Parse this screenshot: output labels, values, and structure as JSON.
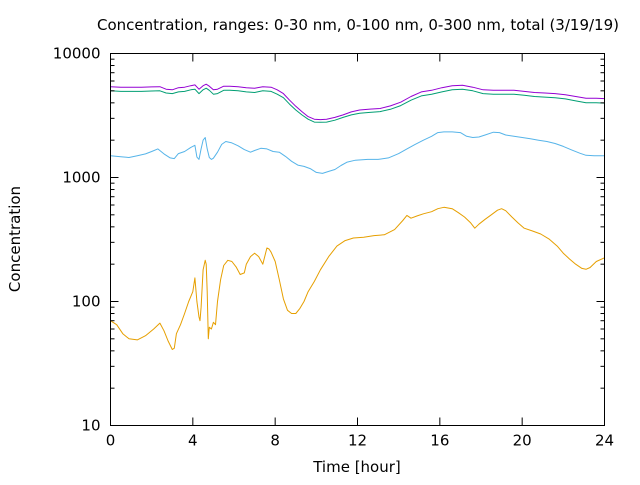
{
  "chart_data": {
    "type": "line",
    "title": "Concentration, ranges: 0-30 nm, 0-100 nm, 0-300 nm, total (3/19/19)",
    "xlabel": "Time [hour]",
    "ylabel": "Concentration",
    "xlim": [
      0,
      24
    ],
    "ylim": [
      10,
      10000
    ],
    "yscale": "log",
    "grid": false,
    "legend": "none",
    "x_ticks": [
      0,
      4,
      8,
      12,
      16,
      20,
      24
    ],
    "x_tick_labels": [
      "0",
      "4",
      "8",
      "12",
      "16",
      "20",
      "24"
    ],
    "y_ticks": [
      10,
      100,
      1000,
      10000
    ],
    "y_tick_labels": [
      "10",
      "100",
      "1000",
      "10000"
    ],
    "series": [
      {
        "color": "#e69f00",
        "points": [
          [
            0,
            70
          ],
          [
            0.3,
            65
          ],
          [
            0.6,
            55
          ],
          [
            0.9,
            50
          ],
          [
            1.3,
            49
          ],
          [
            1.7,
            53
          ],
          [
            2.1,
            60
          ],
          [
            2.4,
            67
          ],
          [
            2.6,
            58
          ],
          [
            2.8,
            48
          ],
          [
            3.0,
            41
          ],
          [
            3.1,
            42
          ],
          [
            3.2,
            55
          ],
          [
            3.4,
            65
          ],
          [
            3.6,
            80
          ],
          [
            3.8,
            100
          ],
          [
            4.0,
            120
          ],
          [
            4.1,
            155
          ],
          [
            4.2,
            100
          ],
          [
            4.3,
            75
          ],
          [
            4.35,
            70
          ],
          [
            4.4,
            90
          ],
          [
            4.5,
            180
          ],
          [
            4.6,
            215
          ],
          [
            4.65,
            200
          ],
          [
            4.7,
            120
          ],
          [
            4.75,
            50
          ],
          [
            4.8,
            62
          ],
          [
            4.9,
            60
          ],
          [
            5.0,
            68
          ],
          [
            5.1,
            65
          ],
          [
            5.2,
            100
          ],
          [
            5.35,
            150
          ],
          [
            5.5,
            195
          ],
          [
            5.7,
            215
          ],
          [
            5.9,
            210
          ],
          [
            6.1,
            190
          ],
          [
            6.3,
            165
          ],
          [
            6.5,
            170
          ],
          [
            6.6,
            200
          ],
          [
            6.8,
            230
          ],
          [
            7.0,
            245
          ],
          [
            7.2,
            230
          ],
          [
            7.4,
            200
          ],
          [
            7.6,
            270
          ],
          [
            7.7,
            265
          ],
          [
            7.8,
            250
          ],
          [
            8.0,
            210
          ],
          [
            8.2,
            150
          ],
          [
            8.4,
            105
          ],
          [
            8.6,
            85
          ],
          [
            8.8,
            80
          ],
          [
            9.0,
            80
          ],
          [
            9.2,
            88
          ],
          [
            9.4,
            100
          ],
          [
            9.6,
            120
          ],
          [
            9.9,
            145
          ],
          [
            10.2,
            180
          ],
          [
            10.6,
            230
          ],
          [
            11.0,
            280
          ],
          [
            11.4,
            310
          ],
          [
            11.8,
            325
          ],
          [
            12.3,
            330
          ],
          [
            12.8,
            340
          ],
          [
            13.3,
            345
          ],
          [
            13.8,
            380
          ],
          [
            14.2,
            450
          ],
          [
            14.4,
            495
          ],
          [
            14.6,
            470
          ],
          [
            14.9,
            490
          ],
          [
            15.2,
            510
          ],
          [
            15.6,
            530
          ],
          [
            15.9,
            560
          ],
          [
            16.2,
            575
          ],
          [
            16.6,
            560
          ],
          [
            16.9,
            520
          ],
          [
            17.2,
            480
          ],
          [
            17.5,
            430
          ],
          [
            17.7,
            390
          ],
          [
            17.9,
            420
          ],
          [
            18.2,
            460
          ],
          [
            18.5,
            500
          ],
          [
            18.8,
            545
          ],
          [
            19.0,
            560
          ],
          [
            19.2,
            540
          ],
          [
            19.5,
            480
          ],
          [
            19.8,
            430
          ],
          [
            20.1,
            390
          ],
          [
            20.5,
            370
          ],
          [
            20.9,
            350
          ],
          [
            21.3,
            320
          ],
          [
            21.7,
            280
          ],
          [
            22.0,
            245
          ],
          [
            22.3,
            220
          ],
          [
            22.6,
            200
          ],
          [
            22.9,
            185
          ],
          [
            23.1,
            182
          ],
          [
            23.3,
            188
          ],
          [
            23.6,
            210
          ],
          [
            24.0,
            225
          ]
        ]
      },
      {
        "color": "#56b4e9",
        "points": [
          [
            0,
            1500
          ],
          [
            0.5,
            1470
          ],
          [
            0.9,
            1450
          ],
          [
            1.3,
            1500
          ],
          [
            1.7,
            1550
          ],
          [
            2.0,
            1620
          ],
          [
            2.3,
            1700
          ],
          [
            2.6,
            1550
          ],
          [
            2.9,
            1440
          ],
          [
            3.1,
            1420
          ],
          [
            3.3,
            1560
          ],
          [
            3.6,
            1620
          ],
          [
            3.9,
            1750
          ],
          [
            4.1,
            1820
          ],
          [
            4.2,
            1460
          ],
          [
            4.3,
            1400
          ],
          [
            4.4,
            1700
          ],
          [
            4.5,
            2000
          ],
          [
            4.6,
            2100
          ],
          [
            4.7,
            1700
          ],
          [
            4.8,
            1450
          ],
          [
            4.9,
            1400
          ],
          [
            5.0,
            1430
          ],
          [
            5.2,
            1600
          ],
          [
            5.4,
            1850
          ],
          [
            5.6,
            1950
          ],
          [
            5.9,
            1900
          ],
          [
            6.2,
            1800
          ],
          [
            6.5,
            1680
          ],
          [
            6.8,
            1600
          ],
          [
            7.0,
            1650
          ],
          [
            7.3,
            1720
          ],
          [
            7.6,
            1700
          ],
          [
            7.9,
            1620
          ],
          [
            8.2,
            1600
          ],
          [
            8.5,
            1480
          ],
          [
            8.8,
            1350
          ],
          [
            9.1,
            1260
          ],
          [
            9.4,
            1230
          ],
          [
            9.7,
            1180
          ],
          [
            10.0,
            1100
          ],
          [
            10.3,
            1080
          ],
          [
            10.6,
            1120
          ],
          [
            10.9,
            1160
          ],
          [
            11.2,
            1250
          ],
          [
            11.5,
            1330
          ],
          [
            11.9,
            1380
          ],
          [
            12.5,
            1400
          ],
          [
            13.0,
            1400
          ],
          [
            13.5,
            1440
          ],
          [
            14.0,
            1560
          ],
          [
            14.4,
            1700
          ],
          [
            14.8,
            1850
          ],
          [
            15.2,
            2000
          ],
          [
            15.6,
            2150
          ],
          [
            15.9,
            2300
          ],
          [
            16.2,
            2330
          ],
          [
            16.6,
            2330
          ],
          [
            17.0,
            2300
          ],
          [
            17.3,
            2150
          ],
          [
            17.6,
            2100
          ],
          [
            17.9,
            2120
          ],
          [
            18.2,
            2200
          ],
          [
            18.6,
            2320
          ],
          [
            18.9,
            2300
          ],
          [
            19.2,
            2200
          ],
          [
            19.6,
            2150
          ],
          [
            20.0,
            2100
          ],
          [
            20.4,
            2050
          ],
          [
            20.8,
            2000
          ],
          [
            21.2,
            1950
          ],
          [
            21.6,
            1880
          ],
          [
            22.0,
            1780
          ],
          [
            22.4,
            1670
          ],
          [
            22.8,
            1570
          ],
          [
            23.1,
            1510
          ],
          [
            23.5,
            1500
          ],
          [
            24.0,
            1500
          ]
        ]
      },
      {
        "color": "#009e73",
        "points": [
          [
            0,
            5000
          ],
          [
            0.5,
            4950
          ],
          [
            1.0,
            4950
          ],
          [
            1.5,
            4950
          ],
          [
            2.0,
            4980
          ],
          [
            2.4,
            5000
          ],
          [
            2.7,
            4800
          ],
          [
            3.0,
            4750
          ],
          [
            3.3,
            4900
          ],
          [
            3.6,
            4950
          ],
          [
            3.9,
            5100
          ],
          [
            4.1,
            5150
          ],
          [
            4.3,
            4750
          ],
          [
            4.5,
            5100
          ],
          [
            4.65,
            5250
          ],
          [
            4.8,
            5050
          ],
          [
            5.0,
            4700
          ],
          [
            5.2,
            4750
          ],
          [
            5.5,
            5050
          ],
          [
            5.8,
            5050
          ],
          [
            6.2,
            5000
          ],
          [
            6.6,
            4900
          ],
          [
            7.0,
            4850
          ],
          [
            7.4,
            5000
          ],
          [
            7.8,
            4950
          ],
          [
            8.1,
            4700
          ],
          [
            8.4,
            4400
          ],
          [
            8.7,
            3900
          ],
          [
            9.0,
            3500
          ],
          [
            9.3,
            3200
          ],
          [
            9.6,
            2950
          ],
          [
            9.9,
            2800
          ],
          [
            10.2,
            2790
          ],
          [
            10.5,
            2800
          ],
          [
            10.9,
            2900
          ],
          [
            11.3,
            3050
          ],
          [
            11.7,
            3200
          ],
          [
            12.1,
            3300
          ],
          [
            12.6,
            3350
          ],
          [
            13.1,
            3400
          ],
          [
            13.6,
            3550
          ],
          [
            14.1,
            3800
          ],
          [
            14.6,
            4200
          ],
          [
            15.1,
            4550
          ],
          [
            15.6,
            4700
          ],
          [
            16.1,
            4900
          ],
          [
            16.6,
            5100
          ],
          [
            17.1,
            5150
          ],
          [
            17.6,
            5000
          ],
          [
            18.1,
            4750
          ],
          [
            18.6,
            4700
          ],
          [
            19.1,
            4700
          ],
          [
            19.6,
            4700
          ],
          [
            20.1,
            4600
          ],
          [
            20.6,
            4500
          ],
          [
            21.1,
            4450
          ],
          [
            21.6,
            4400
          ],
          [
            22.1,
            4300
          ],
          [
            22.6,
            4150
          ],
          [
            23.1,
            4000
          ],
          [
            23.6,
            4000
          ],
          [
            24.0,
            3980
          ]
        ]
      },
      {
        "color": "#9400d3",
        "points": [
          [
            0,
            5400
          ],
          [
            0.5,
            5350
          ],
          [
            1.0,
            5350
          ],
          [
            1.5,
            5350
          ],
          [
            2.0,
            5380
          ],
          [
            2.4,
            5400
          ],
          [
            2.7,
            5150
          ],
          [
            3.0,
            5100
          ],
          [
            3.3,
            5300
          ],
          [
            3.6,
            5350
          ],
          [
            3.9,
            5500
          ],
          [
            4.1,
            5580
          ],
          [
            4.3,
            5150
          ],
          [
            4.5,
            5500
          ],
          [
            4.65,
            5650
          ],
          [
            4.8,
            5450
          ],
          [
            5.0,
            5100
          ],
          [
            5.2,
            5150
          ],
          [
            5.5,
            5450
          ],
          [
            5.8,
            5450
          ],
          [
            6.2,
            5400
          ],
          [
            6.6,
            5300
          ],
          [
            7.0,
            5250
          ],
          [
            7.4,
            5400
          ],
          [
            7.8,
            5350
          ],
          [
            8.1,
            5100
          ],
          [
            8.4,
            4750
          ],
          [
            8.7,
            4200
          ],
          [
            9.0,
            3750
          ],
          [
            9.3,
            3400
          ],
          [
            9.6,
            3100
          ],
          [
            9.9,
            2950
          ],
          [
            10.2,
            2930
          ],
          [
            10.5,
            2950
          ],
          [
            10.9,
            3050
          ],
          [
            11.3,
            3200
          ],
          [
            11.7,
            3380
          ],
          [
            12.1,
            3500
          ],
          [
            12.6,
            3560
          ],
          [
            13.1,
            3600
          ],
          [
            13.6,
            3780
          ],
          [
            14.1,
            4050
          ],
          [
            14.6,
            4500
          ],
          [
            15.1,
            4900
          ],
          [
            15.6,
            5050
          ],
          [
            16.1,
            5300
          ],
          [
            16.6,
            5500
          ],
          [
            17.1,
            5550
          ],
          [
            17.6,
            5350
          ],
          [
            18.1,
            5100
          ],
          [
            18.6,
            5050
          ],
          [
            19.1,
            5050
          ],
          [
            19.6,
            5050
          ],
          [
            20.1,
            4950
          ],
          [
            20.6,
            4850
          ],
          [
            21.1,
            4800
          ],
          [
            21.6,
            4750
          ],
          [
            22.1,
            4650
          ],
          [
            22.6,
            4500
          ],
          [
            23.1,
            4350
          ],
          [
            23.6,
            4350
          ],
          [
            24.0,
            4330
          ]
        ]
      }
    ]
  }
}
